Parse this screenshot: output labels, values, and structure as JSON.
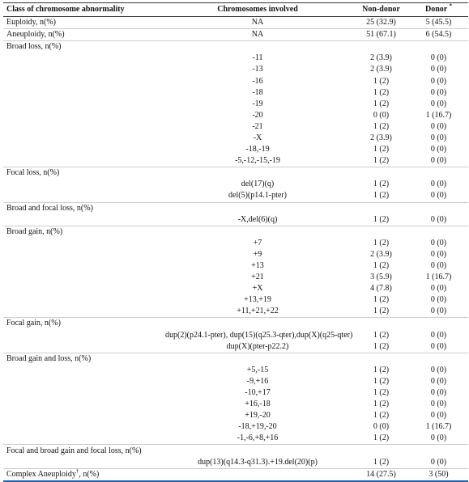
{
  "table": {
    "header": {
      "class": "Class of chromosome abnormality",
      "chromosomes": "Chromosomes involved",
      "non_donor": "Non-donor",
      "donor": "Donor",
      "donor_mark": "*"
    },
    "rows": [
      {
        "class": "Euploidy, n(%)",
        "chromosomes": "NA",
        "non_donor": "25 (32.9)",
        "donor": "5 (45.5)"
      },
      {
        "class": "Aneuploidy, n(%)",
        "chromosomes": "NA",
        "non_donor": "51 (67.1)",
        "donor": "6 (54.5)"
      },
      {
        "section": "Broad loss, n(%)"
      },
      {
        "chromosomes": "-11",
        "non_donor": "2 (3.9)",
        "donor": "0 (0)"
      },
      {
        "chromosomes": "-13",
        "non_donor": "2 (3.9)",
        "donor": "0 (0)"
      },
      {
        "chromosomes": "-16",
        "non_donor": "1 (2)",
        "donor": "0 (0)"
      },
      {
        "chromosomes": "-18",
        "non_donor": "1 (2)",
        "donor": "0 (0)"
      },
      {
        "chromosomes": "-19",
        "non_donor": "1 (2)",
        "donor": "0 (0)"
      },
      {
        "chromosomes": "-20",
        "non_donor": "0 (0)",
        "donor": "1 (16.7)"
      },
      {
        "chromosomes": "-21",
        "non_donor": "1 (2)",
        "donor": "0 (0)"
      },
      {
        "chromosomes": "-X",
        "non_donor": "2 (3.9)",
        "donor": "0 (0)"
      },
      {
        "chromosomes": "-18,-19",
        "non_donor": "1 (2)",
        "donor": "0 (0)"
      },
      {
        "chromosomes": "-5,-12,-15,-19",
        "non_donor": "1 (2)",
        "donor": "0 (0)"
      },
      {
        "section": "Focal loss, n(%)"
      },
      {
        "chromosomes": "del(17)(q)",
        "non_donor": "1 (2)",
        "donor": "0 (0)"
      },
      {
        "chromosomes": "del(5)(p14.1-pter)",
        "non_donor": "1 (2)",
        "donor": "0 (0)"
      },
      {
        "section": "Broad and focal loss, n(%)"
      },
      {
        "chromosomes": "-X,del(6)(q)",
        "non_donor": "1 (2)",
        "donor": "0 (0)"
      },
      {
        "section": "Broad gain, n(%)"
      },
      {
        "chromosomes": "+7",
        "non_donor": "1 (2)",
        "donor": "0 (0)"
      },
      {
        "chromosomes": "+9",
        "non_donor": "2 (3.9)",
        "donor": "0 (0)"
      },
      {
        "chromosomes": "+13",
        "non_donor": "1 (2)",
        "donor": "0 (0)"
      },
      {
        "chromosomes": "+21",
        "non_donor": "3 (5.9)",
        "donor": "1 (16.7)"
      },
      {
        "chromosomes": "+X",
        "non_donor": "4 (7.8)",
        "donor": "0 (0)"
      },
      {
        "chromosomes": "+13,+19",
        "non_donor": "1 (2)",
        "donor": "0 (0)"
      },
      {
        "chromosomes": "+11,+21,+22",
        "non_donor": "1 (2)",
        "donor": "0 (0)"
      },
      {
        "section": "Focal gain, n(%)"
      },
      {
        "chromosomes": "dup(2)(p24.1-pter), dup(15)(q25.3-qter),dup(X)(q25-qter)",
        "non_donor": "1 (2)",
        "donor": "0 (0)"
      },
      {
        "chromosomes": "dup(X)(pter-p22.2)",
        "non_donor": "1 (2)",
        "donor": "0 (0)"
      },
      {
        "section": "Broad gain and loss, n(%)"
      },
      {
        "chromosomes": "+5,-15",
        "non_donor": "1 (2)",
        "donor": "0 (0)"
      },
      {
        "chromosomes": "-9,+16",
        "non_donor": "1 (2)",
        "donor": "0 (0)"
      },
      {
        "chromosomes": "-10,+17",
        "non_donor": "1 (2)",
        "donor": "0 (0)"
      },
      {
        "chromosomes": "+16,-18",
        "non_donor": "1 (2)",
        "donor": "0 (0)"
      },
      {
        "chromosomes": "+19,-20",
        "non_donor": "1 (2)",
        "donor": "0 (0)"
      },
      {
        "chromosomes": "-18,+19,-20",
        "non_donor": "0 (0)",
        "donor": "1 (16.7)"
      },
      {
        "chromosomes": "-1,-6,+8,+16",
        "non_donor": "1 (2)",
        "donor": "0 (0)"
      },
      {
        "section": "Focal and broad gain and focal loss, n(%)"
      },
      {
        "chromosomes": "dup(13)(q14.3-q31.3).+19.del(20)(p)",
        "non_donor": "1 (2)",
        "donor": "0 (0)"
      },
      {
        "class_parts": {
          "text": "Complex Aneuploidy",
          "sup": "†",
          "suffix": ", n(%)"
        },
        "non_donor": "14 (27.5)",
        "donor": "3 (50)"
      }
    ]
  }
}
